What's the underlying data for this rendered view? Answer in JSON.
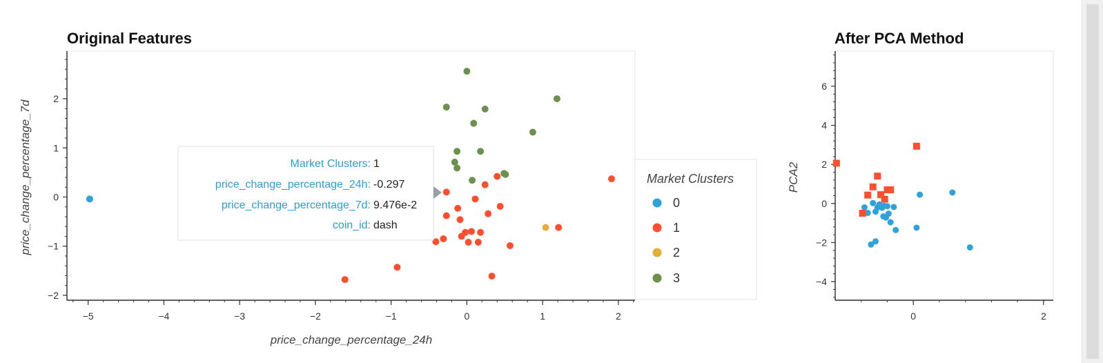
{
  "chart_data": [
    {
      "type": "scatter",
      "title": "Original Features",
      "xlabel": "price_change_percentage_24h",
      "ylabel": "price_change_percentage_7d",
      "xlim": [
        -5.28,
        2.22
      ],
      "ylim": [
        -2.1,
        2.97
      ],
      "xticks": [
        -5,
        -4,
        -3,
        -2,
        -1,
        0,
        1,
        2
      ],
      "yticks": [
        -2,
        -1,
        0,
        1,
        2
      ],
      "legend": {
        "title": "Market Clusters",
        "placement": "right",
        "entries": [
          {
            "label": "0",
            "color": "#30a2da"
          },
          {
            "label": "1",
            "color": "#fc4f30"
          },
          {
            "label": "2",
            "color": "#e5ae38"
          },
          {
            "label": "3",
            "color": "#6d904f"
          }
        ]
      },
      "series": [
        {
          "name": "0",
          "color": "#30a2da",
          "points": [
            [
              -4.98,
              -0.04
            ]
          ]
        },
        {
          "name": "1",
          "color": "#fc4f30",
          "points": [
            [
              -1.61,
              -1.68
            ],
            [
              -0.92,
              -1.43
            ],
            [
              -0.41,
              -0.91
            ],
            [
              -0.31,
              -0.85
            ],
            [
              -0.27,
              -0.38
            ],
            [
              -0.27,
              0.1
            ],
            [
              -0.12,
              -0.23
            ],
            [
              -0.09,
              -0.46
            ],
            [
              -0.07,
              -0.8
            ],
            [
              -0.02,
              -0.72
            ],
            [
              0.02,
              -0.92
            ],
            [
              0.06,
              -0.7
            ],
            [
              0.11,
              -0.04
            ],
            [
              0.15,
              -0.92
            ],
            [
              0.18,
              -0.72
            ],
            [
              0.24,
              0.25
            ],
            [
              0.28,
              -0.34
            ],
            [
              0.33,
              -1.61
            ],
            [
              0.4,
              0.42
            ],
            [
              0.44,
              -0.19
            ],
            [
              0.57,
              -0.99
            ],
            [
              1.21,
              -0.62
            ],
            [
              1.91,
              0.37
            ]
          ]
        },
        {
          "name": "2",
          "color": "#e5ae38",
          "points": [
            [
              1.04,
              -0.62
            ]
          ]
        },
        {
          "name": "3",
          "color": "#6d904f",
          "points": [
            [
              0.0,
              2.56
            ],
            [
              1.19,
              2.0
            ],
            [
              -0.27,
              1.83
            ],
            [
              0.24,
              1.79
            ],
            [
              0.09,
              1.5
            ],
            [
              0.87,
              1.32
            ],
            [
              -0.13,
              0.93
            ],
            [
              0.18,
              0.93
            ],
            [
              -0.16,
              0.71
            ],
            [
              -0.13,
              0.59
            ],
            [
              0.07,
              0.34
            ],
            [
              0.49,
              0.48
            ],
            [
              0.51,
              0.46
            ]
          ]
        }
      ]
    },
    {
      "type": "scatter",
      "title": "After PCA Method",
      "xlabel": "",
      "ylabel": "PCA2",
      "xlim": [
        -1.2,
        2.15
      ],
      "ylim": [
        -4.95,
        7.8
      ],
      "xticks": [
        0,
        2
      ],
      "yticks": [
        -4,
        -2,
        0,
        2,
        4,
        6
      ],
      "series": [
        {
          "name": "0",
          "color": "#30a2da",
          "marker": "circle",
          "points": [
            [
              -0.75,
              -0.2
            ],
            [
              -0.7,
              -0.48
            ],
            [
              -0.62,
              0.02
            ],
            [
              -0.58,
              -0.42
            ],
            [
              -0.55,
              -0.2
            ],
            [
              -0.52,
              -0.05
            ],
            [
              -0.48,
              -0.22
            ],
            [
              -0.45,
              -0.12
            ],
            [
              -0.42,
              -0.72
            ],
            [
              -0.4,
              -0.14
            ],
            [
              -0.38,
              -0.52
            ],
            [
              -0.35,
              -0.96
            ],
            [
              -0.3,
              -0.18
            ],
            [
              -0.27,
              -1.36
            ],
            [
              -0.65,
              -2.1
            ],
            [
              -0.58,
              -1.94
            ],
            [
              -0.46,
              -0.66
            ],
            [
              0.05,
              -1.24
            ],
            [
              0.1,
              0.45
            ],
            [
              0.6,
              0.56
            ],
            [
              0.87,
              -2.25
            ]
          ]
        },
        {
          "name": "1",
          "color": "#fc4f30",
          "marker": "square",
          "points": [
            [
              -1.18,
              2.06
            ],
            [
              -0.78,
              -0.5
            ],
            [
              -0.7,
              0.43
            ],
            [
              -0.62,
              0.85
            ],
            [
              -0.55,
              1.4
            ],
            [
              -0.5,
              0.45
            ],
            [
              -0.44,
              0.22
            ],
            [
              -0.4,
              0.7
            ],
            [
              -0.35,
              0.7
            ],
            [
              0.05,
              2.93
            ]
          ]
        }
      ]
    }
  ],
  "tooltip": {
    "rows": [
      {
        "key": "Market Clusters:",
        "value": "1"
      },
      {
        "key": "price_change_percentage_24h:",
        "value": "-0.297"
      },
      {
        "key": "price_change_percentage_7d:",
        "value": "9.476e-2"
      },
      {
        "key": "coin_id:",
        "value": "dash"
      }
    ]
  }
}
